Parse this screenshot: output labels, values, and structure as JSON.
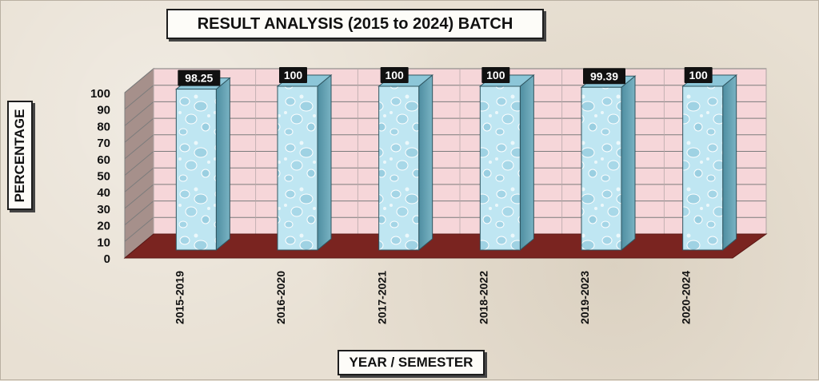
{
  "chart_data": {
    "type": "bar",
    "title": "RESULT ANALYSIS (2015 to 2024) BATCH",
    "xlabel": "YEAR / SEMESTER",
    "ylabel": "PERCENTAGE",
    "categories": [
      "2015-2019",
      "2016-2020",
      "2017-2021",
      "2018-2022",
      "2019-2023",
      "2020-2024"
    ],
    "values": [
      98.25,
      100,
      100,
      100,
      99.39,
      100
    ],
    "data_labels": [
      "98.25",
      "100",
      "100",
      "100",
      "99.39",
      "100"
    ],
    "y_ticks": [
      "0",
      "10",
      "20",
      "30",
      "40",
      "50",
      "60",
      "70",
      "80",
      "90",
      "100"
    ],
    "ylim": [
      0,
      100
    ],
    "grid": true,
    "legend": "none",
    "colors": {
      "back_wall": "#f6d6d9",
      "side_wall": "#a6908b",
      "floor": "#7a2420",
      "bar_front": "#bfe6f2",
      "bar_side": "#5f9fb2",
      "bar_top": "#8cc6d8",
      "label_bg": "#111111",
      "label_text": "#ffffff"
    }
  }
}
